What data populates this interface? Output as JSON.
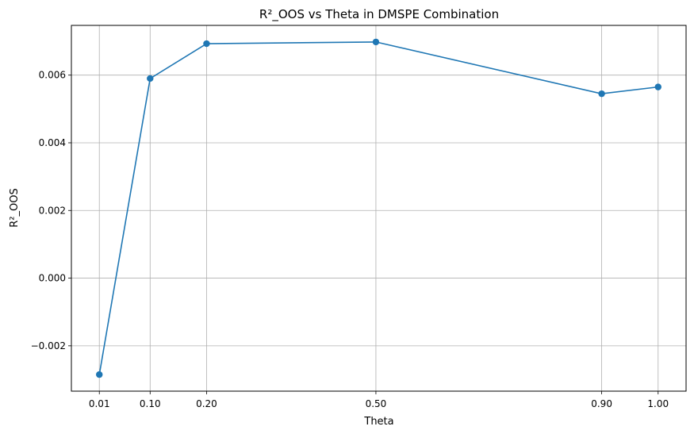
{
  "chart_data": {
    "type": "line",
    "title": "R²_OOS vs Theta in DMSPE Combination",
    "xlabel": "Theta",
    "ylabel": "R²_OOS",
    "x": [
      0.01,
      0.1,
      0.2,
      0.5,
      0.9,
      1.0
    ],
    "x_tick_labels": [
      "0.01",
      "0.10",
      "0.20",
      "0.50",
      "0.90",
      "1.00"
    ],
    "y_ticks": [
      -0.002,
      0.0,
      0.002,
      0.004,
      0.006
    ],
    "y_tick_labels": [
      "−0.002",
      "0.000",
      "0.002",
      "0.004",
      "0.006"
    ],
    "series": [
      {
        "values": [
          -0.00285,
          0.0059,
          0.00693,
          0.00698,
          0.00545,
          0.00565
        ]
      }
    ],
    "xlim": [
      -0.0395,
      1.0495
    ],
    "ylim": [
      -0.00334,
      0.00747
    ],
    "grid": true,
    "colors": {
      "line": "#1f77b4",
      "marker": "#1f77b4",
      "grid": "#b0b0b0",
      "axes": "#000000"
    }
  }
}
